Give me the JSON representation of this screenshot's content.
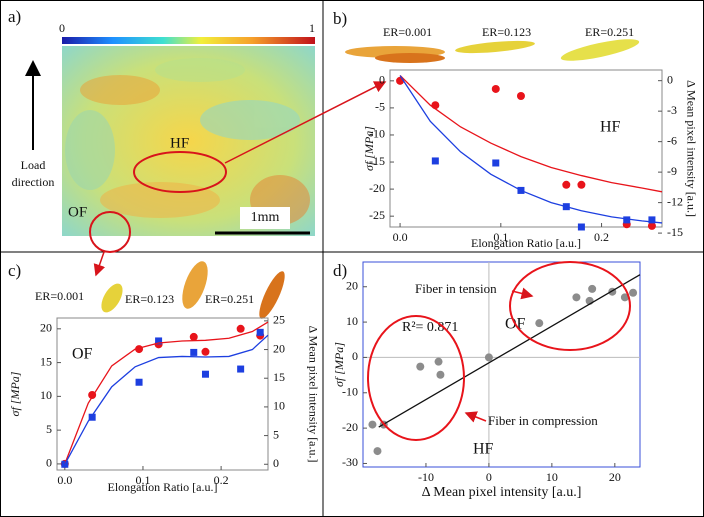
{
  "panel_a": {
    "label": "a)",
    "colorbar_lim": [
      0,
      1
    ],
    "arrow_label": [
      "Load",
      "direction"
    ],
    "regions": [
      "HF",
      "OF"
    ],
    "scale_bar": "1mm"
  },
  "chart_data": [
    {
      "type": "scatter",
      "panel": "b)",
      "images": [
        "ER=0.001",
        "ER=0.123",
        "ER=0.251"
      ],
      "annotations": [
        "HF"
      ],
      "xlabel": "Elongation Ratio [a.u.]",
      "ylabel": "σf [MPa]",
      "y2label": "Δ Mean pixel intensity [a.u.]",
      "xlim": [
        -0.01,
        0.26
      ],
      "xticks": [
        {
          "value": 0,
          "label": "0.0"
        },
        0.1,
        0.2
      ],
      "ylim": [
        -27,
        2
      ],
      "yticks": [
        0,
        -5,
        -10,
        -15,
        -20,
        -25
      ],
      "y2lim": [
        -14.4,
        1.05
      ],
      "y2ticks": [
        0,
        -3,
        -6,
        -9,
        -12,
        -15
      ],
      "series": [
        {
          "marker": "circle",
          "color": "#e8141b",
          "x": [
            0,
            0.035,
            0.095,
            0.12,
            0.165,
            0.18,
            0.225,
            0.25
          ],
          "values": [
            0,
            -4.5,
            -1.5,
            -2.8,
            -19.2,
            -19.2,
            -26.5,
            -26.8
          ]
        },
        {
          "marker": "square",
          "color": "#1d3fe0",
          "axis": "y2",
          "x": [
            0.035,
            0.095,
            0.12,
            0.165,
            0.18,
            0.225,
            0.25
          ],
          "values": [
            -7.9,
            -8.1,
            -10.8,
            -12.4,
            -14.4,
            -13.7,
            -13.7
          ]
        },
        {
          "marker": "line",
          "color": "#e8141b",
          "x": [
            0,
            0.03,
            0.06,
            0.09,
            0.12,
            0.15,
            0.18,
            0.21,
            0.24,
            0.26
          ],
          "values": [
            1,
            -4.5,
            -8.5,
            -11.5,
            -14,
            -16,
            -17.5,
            -18.8,
            -19.8,
            -20.5
          ]
        },
        {
          "marker": "line",
          "color": "#1d3fe0",
          "axis": "y2",
          "x": [
            0,
            0.03,
            0.06,
            0.09,
            0.12,
            0.15,
            0.18,
            0.21,
            0.24,
            0.26
          ],
          "values": [
            0.5,
            -4,
            -7,
            -9.2,
            -10.8,
            -12,
            -12.8,
            -13.4,
            -13.8,
            -14
          ]
        }
      ]
    },
    {
      "type": "scatter",
      "panel": "c)",
      "images": [
        "ER=0.001",
        "ER=0.123",
        "ER=0.251"
      ],
      "annotations": [
        "OF"
      ],
      "xlabel": "Elongation Ratio [a.u.]",
      "ylabel": "σf [MPa]",
      "y2label": "Δ Mean pixel intensity [a.u.]",
      "xlim": [
        -0.01,
        0.26
      ],
      "xticks": [
        {
          "value": 0,
          "label": "0.0"
        },
        0.1,
        0.2
      ],
      "ylim": [
        -0.9,
        21.6
      ],
      "yticks": [
        0,
        5,
        10,
        15,
        20
      ],
      "y2lim": [
        -1,
        25.5
      ],
      "y2ticks": [
        0,
        5,
        10,
        15,
        20,
        25
      ],
      "series": [
        {
          "marker": "circle",
          "color": "#e8141b",
          "x": [
            0,
            0.035,
            0.095,
            0.12,
            0.165,
            0.18,
            0.225,
            0.25
          ],
          "values": [
            0,
            10.2,
            17,
            17.7,
            18.8,
            16.6,
            20,
            19
          ]
        },
        {
          "marker": "square",
          "color": "#1d3fe0",
          "axis": "y2",
          "x": [
            0,
            0.035,
            0.095,
            0.12,
            0.165,
            0.18,
            0.225,
            0.25
          ],
          "values": [
            0,
            8.2,
            14.3,
            21.5,
            19.5,
            15.7,
            16.6,
            23
          ]
        },
        {
          "marker": "line",
          "color": "#e8141b",
          "x": [
            0,
            0.03,
            0.06,
            0.09,
            0.12,
            0.15,
            0.18,
            0.21,
            0.24,
            0.26
          ],
          "values": [
            0,
            9,
            14.5,
            17,
            17.9,
            18.2,
            18.3,
            18.6,
            19.6,
            21
          ]
        },
        {
          "marker": "line",
          "color": "#1d3fe0",
          "axis": "y2",
          "x": [
            0,
            0.03,
            0.06,
            0.09,
            0.12,
            0.15,
            0.18,
            0.21,
            0.24,
            0.26
          ],
          "values": [
            0,
            7.5,
            13.5,
            17,
            18.6,
            18.8,
            18.7,
            18.8,
            20,
            22.5
          ]
        }
      ]
    },
    {
      "type": "scatter",
      "panel": "d)",
      "annotations": [
        "Fiber in tension",
        "R²= 0.871",
        "OF",
        "HF",
        "Fiber in compression"
      ],
      "xlabel": "Δ Mean pixel intensity [a.u.]",
      "ylabel": "σf [MPa]",
      "xlim": [
        -20,
        24
      ],
      "xticks": [
        -10,
        0,
        10,
        20
      ],
      "ylim": [
        -31,
        27
      ],
      "yticks": [
        20,
        10,
        0,
        -10,
        -20,
        -30
      ],
      "origin_lines": true,
      "series": [
        {
          "marker": "circle",
          "color": "#8c8c8c",
          "x": [
            -18.5,
            -16.7,
            -17.7,
            -10.9,
            -8,
            -7.7,
            0,
            8,
            13.9,
            16,
            16.4,
            19.6,
            21.6,
            22.9
          ],
          "values": [
            -19,
            -19,
            -26.5,
            -2.6,
            -1.2,
            -4.9,
            0,
            9.7,
            17,
            16,
            19.4,
            18.6,
            17,
            18.3
          ]
        },
        {
          "marker": "line",
          "color": "#111111",
          "x": [
            -17.5,
            24
          ],
          "values": [
            -19.7,
            23.4
          ]
        }
      ]
    }
  ]
}
